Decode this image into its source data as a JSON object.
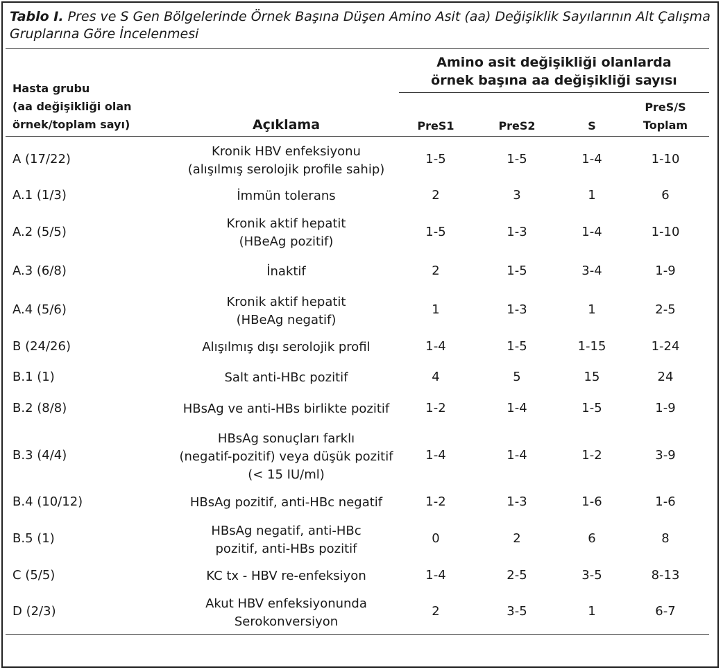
{
  "caption": {
    "label": "Tablo I.",
    "text": "Pres ve S Gen Bölgelerinde Örnek Başına Düşen Amino Asit (aa) Değişiklik Sayılarının Alt Çalışma Gruplarına Göre İncelenmesi"
  },
  "header": {
    "group_line1": "Hasta grubu",
    "group_line2": "(aa değişikliği olan",
    "group_line3": "örnek/toplam sayı)",
    "desc": "Açıklama",
    "span_line1": "Amino asit değişikliği olanlarda",
    "span_line2": "örnek başına aa değişikliği sayısı",
    "pres1": "PreS1",
    "pres2": "PreS2",
    "s": "S",
    "total_line1": "PreS/S",
    "total_line2": "Toplam"
  },
  "rows": [
    {
      "group": "A (17/22)",
      "desc": [
        "Kronik HBV enfeksiyonu",
        "(alışılmış serolojik profile sahip)"
      ],
      "pres1": "1-5",
      "pres2": "1-5",
      "s": "1-4",
      "total": "1-10"
    },
    {
      "group": "A.1 (1/3)",
      "desc": [
        "İmmün tolerans"
      ],
      "pres1": "2",
      "pres2": "3",
      "s": "1",
      "total": "6"
    },
    {
      "group": "A.2 (5/5)",
      "desc": [
        "Kronik aktif hepatit",
        "(HBeAg pozitif)"
      ],
      "pres1": "1-5",
      "pres2": "1-3",
      "s": "1-4",
      "total": "1-10"
    },
    {
      "group": "A.3 (6/8)",
      "desc": [
        "İnaktif"
      ],
      "pres1": "2",
      "pres2": "1-5",
      "s": "3-4",
      "total": "1-9"
    },
    {
      "group": "A.4 (5/6)",
      "desc": [
        "Kronik aktif hepatit",
        "(HBeAg negatif)"
      ],
      "pres1": "1",
      "pres2": "1-3",
      "s": "1",
      "total": "2-5"
    },
    {
      "group": "B (24/26)",
      "desc": [
        "Alışılmış dışı serolojik profil"
      ],
      "pres1": "1-4",
      "pres2": "1-5",
      "s": "1-15",
      "total": "1-24"
    },
    {
      "group": "B.1 (1)",
      "desc": [
        "Salt anti-HBc pozitif"
      ],
      "pres1": "4",
      "pres2": "5",
      "s": "15",
      "total": "24"
    },
    {
      "group": "B.2 (8/8)",
      "desc": [
        "HBsAg ve anti-HBs birlikte pozitif"
      ],
      "pres1": "1-2",
      "pres2": "1-4",
      "s": "1-5",
      "total": "1-9"
    },
    {
      "group": "B.3 (4/4)",
      "desc": [
        "HBsAg sonuçları farklı",
        "(negatif-pozitif) veya düşük pozitif",
        "(< 15 IU/ml)"
      ],
      "pres1": "1-4",
      "pres2": "1-4",
      "s": "1-2",
      "total": "3-9"
    },
    {
      "group": "B.4 (10/12)",
      "desc": [
        "HBsAg pozitif, anti-HBc negatif"
      ],
      "pres1": "1-2",
      "pres2": "1-3",
      "s": "1-6",
      "total": "1-6"
    },
    {
      "group": "B.5 (1)",
      "desc": [
        "HBsAg negatif, anti-HBc",
        "pozitif, anti-HBs pozitif"
      ],
      "pres1": "0",
      "pres2": "2",
      "s": "6",
      "total": "8"
    },
    {
      "group": "C (5/5)",
      "desc": [
        "KC tx - HBV re-enfeksiyon"
      ],
      "pres1": "1-4",
      "pres2": "2-5",
      "s": "3-5",
      "total": "8-13"
    },
    {
      "group": "D (2/3)",
      "desc": [
        "Akut HBV enfeksiyonunda",
        "Serokonversiyon"
      ],
      "pres1": "2",
      "pres2": "3-5",
      "s": "1",
      "total": "6-7"
    }
  ]
}
